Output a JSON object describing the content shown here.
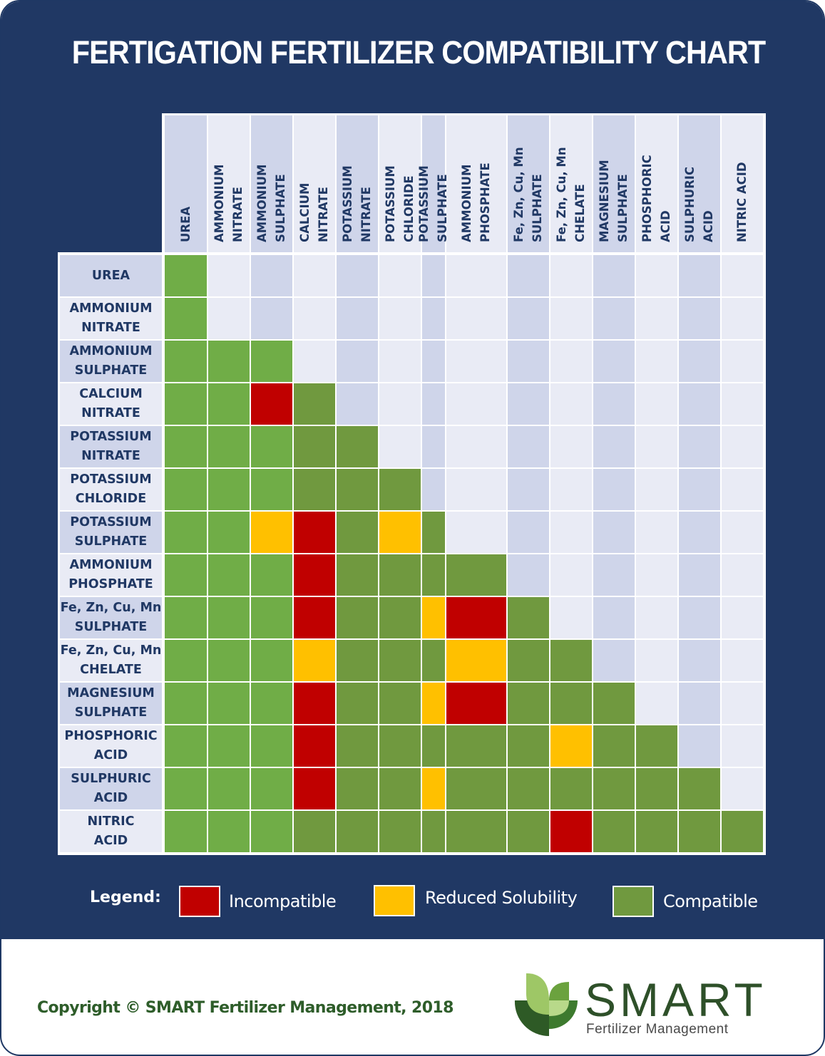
{
  "title": "FERTIGATION FERTILIZER COMPATIBILITY CHART",
  "colors": {
    "navy": "#203864",
    "incompatible": "#c00000",
    "reduced": "#ffc000",
    "compatible_light": "#70ad47",
    "compatible_dark": "#70993f",
    "empty_a": "#cfd5ea",
    "empty_b": "#e9ebf5"
  },
  "chart_data": {
    "type": "heatmap",
    "title": "FERTIGATION FERTILIZER COMPATIBILITY CHART",
    "columns": [
      "UREA",
      "AMMONIUM\nNITRATE",
      "AMMONIUM\nSULPHATE",
      "CALCIUM\nNITRATE",
      "POTASSIUM\nNITRATE",
      "POTASSIUM\nCHLORIDE",
      "POTASSIUM\nSULPHATE",
      "AMMONIUM\nPHOSPHATE",
      "Fe, Zn, Cu, Mn\nSULPHATE",
      "Fe, Zn, Cu, Mn\nCHELATE",
      "MAGNESIUM\nSULPHATE",
      "PHOSPHORIC\nACID",
      "SULPHURIC\nACID",
      "NITRIC ACID"
    ],
    "rows": [
      "UREA",
      "AMMONIUM\nNITRATE",
      "AMMONIUM\nSULPHATE",
      "CALCIUM\nNITRATE",
      "POTASSIUM\nNITRATE",
      "POTASSIUM\nCHLORIDE",
      "POTASSIUM\nSULPHATE",
      "AMMONIUM\nPHOSPHATE",
      "Fe, Zn, Cu, Mn\nSULPHATE",
      "Fe, Zn, Cu, Mn\nCHELATE",
      "MAGNESIUM\nSULPHATE",
      "PHOSPHORIC\nACID",
      "SULPHURIC\nACID",
      "NITRIC\nACID"
    ],
    "value_codes": {
      "C": "Compatible",
      "R": "Reduced Solubility",
      "I": "Incompatible"
    },
    "matrix": [
      [
        "C"
      ],
      [
        "C"
      ],
      [
        "C",
        "C",
        "C"
      ],
      [
        "C",
        "C",
        "I",
        "C"
      ],
      [
        "C",
        "C",
        "C",
        "C",
        "C"
      ],
      [
        "C",
        "C",
        "C",
        "C",
        "C",
        "C"
      ],
      [
        "C",
        "C",
        "R",
        "I",
        "C",
        "R",
        "C"
      ],
      [
        "C",
        "C",
        "C",
        "I",
        "C",
        "C",
        "C",
        "C"
      ],
      [
        "C",
        "C",
        "C",
        "I",
        "C",
        "C",
        "R",
        "I",
        "C"
      ],
      [
        "C",
        "C",
        "C",
        "R",
        "C",
        "C",
        "C",
        "R",
        "C",
        "C"
      ],
      [
        "C",
        "C",
        "C",
        "I",
        "C",
        "C",
        "R",
        "I",
        "C",
        "C",
        "C"
      ],
      [
        "C",
        "C",
        "C",
        "I",
        "C",
        "C",
        "C",
        "C",
        "C",
        "R",
        "C",
        "C"
      ],
      [
        "C",
        "C",
        "C",
        "I",
        "C",
        "C",
        "R",
        "C",
        "C",
        "C",
        "C",
        "C",
        "C"
      ],
      [
        "C",
        "C",
        "C",
        "C",
        "C",
        "C",
        "C",
        "C",
        "C",
        "I",
        "C",
        "C",
        "C",
        "C"
      ]
    ],
    "legend": [
      {
        "code": "I",
        "label": "Incompatible"
      },
      {
        "code": "R",
        "label": "Reduced Solubility"
      },
      {
        "code": "C",
        "label": "Compatible"
      }
    ],
    "legend_title": "Legend:"
  },
  "footer": {
    "copyright": "Copyright © SMART Fertilizer Management, 2018",
    "logo_word": "SMART",
    "logo_sub": "Fertilizer Management"
  }
}
